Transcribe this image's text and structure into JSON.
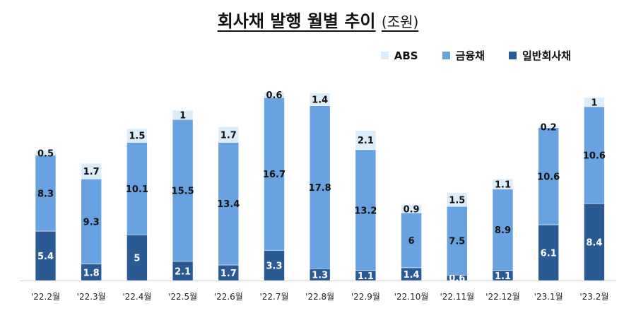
{
  "title": "회사채 발행 월별 추이",
  "unit": "(조원)",
  "chart_data": {
    "type": "bar",
    "stacked": true,
    "categories": [
      "'22.2월",
      "'22.3월",
      "'22.4월",
      "'22.5월",
      "'22.6월",
      "'22.7월",
      "'22.8월",
      "'22.9월",
      "'22.10월",
      "'22.11월",
      "'22.12월",
      "'23.1월",
      "'23.2월"
    ],
    "series": [
      {
        "name": "일반회사채",
        "color": "#2a5a93",
        "label_color": "#ffffff",
        "values": [
          5.4,
          1.8,
          5,
          2.1,
          1.7,
          3.3,
          1.3,
          1.1,
          1.4,
          0.6,
          1.1,
          6.1,
          8.4
        ]
      },
      {
        "name": "금융채",
        "color": "#69a2e0",
        "label_color": "#111111",
        "values": [
          8.3,
          9.3,
          10.1,
          15.5,
          13.4,
          16.7,
          17.8,
          13.2,
          6,
          7.5,
          8.9,
          10.6,
          10.6
        ]
      },
      {
        "name": "ABS",
        "color": "#ddecf9",
        "label_color": "#111111",
        "values": [
          0.5,
          1.7,
          1.5,
          1,
          1.7,
          0.6,
          1.4,
          2.1,
          0.9,
          1.5,
          1.1,
          0.2,
          1
        ]
      }
    ],
    "legend_order": [
      "ABS",
      "금융채",
      "일반회사채"
    ],
    "legend_position": "top-right",
    "ylim": [
      0,
      21
    ],
    "grid": false
  }
}
